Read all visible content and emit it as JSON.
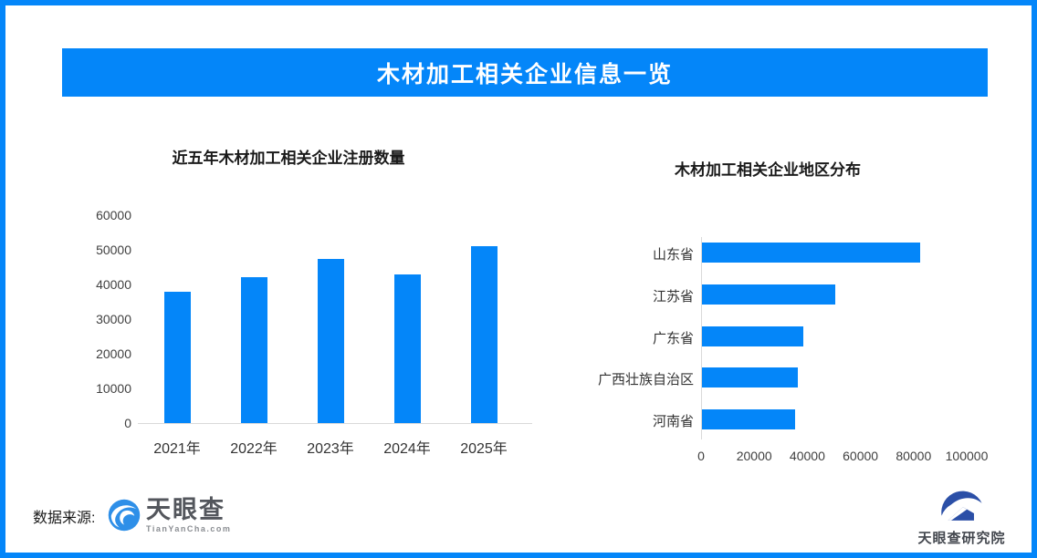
{
  "page": {
    "banner_title": "木材加工相关企业信息一览",
    "source_label": "数据来源:",
    "brand": {
      "name": "天眼查",
      "domain": "TianYanCha.com",
      "institute": "天眼查研究院"
    },
    "colors": {
      "accent": "#0486f9",
      "banner_text": "#ffffff",
      "axis_line": "#d9d9d9"
    }
  },
  "chart_data": [
    {
      "type": "bar",
      "orientation": "vertical",
      "title": "近五年木材加工相关企业注册数量",
      "categories": [
        "2021年",
        "2022年",
        "2023年",
        "2024年",
        "2025年"
      ],
      "values": [
        38000,
        42000,
        47500,
        43000,
        51000
      ],
      "ylim": [
        0,
        60000
      ],
      "yticks": [
        0,
        10000,
        20000,
        30000,
        40000,
        50000,
        60000
      ],
      "grid": false,
      "legend": "none",
      "bar_color": "#0486f9"
    },
    {
      "type": "bar",
      "orientation": "horizontal",
      "title": "木材加工相关企业地区分布",
      "categories": [
        "山东省",
        "江苏省",
        "广东省",
        "广西壮族自治区",
        "河南省"
      ],
      "values": [
        82000,
        50000,
        38000,
        36000,
        35000
      ],
      "xlim": [
        0,
        103000
      ],
      "xticks": [
        0,
        20000,
        40000,
        60000,
        80000,
        100000
      ],
      "grid": false,
      "legend": "none",
      "bar_color": "#0486f9"
    }
  ]
}
